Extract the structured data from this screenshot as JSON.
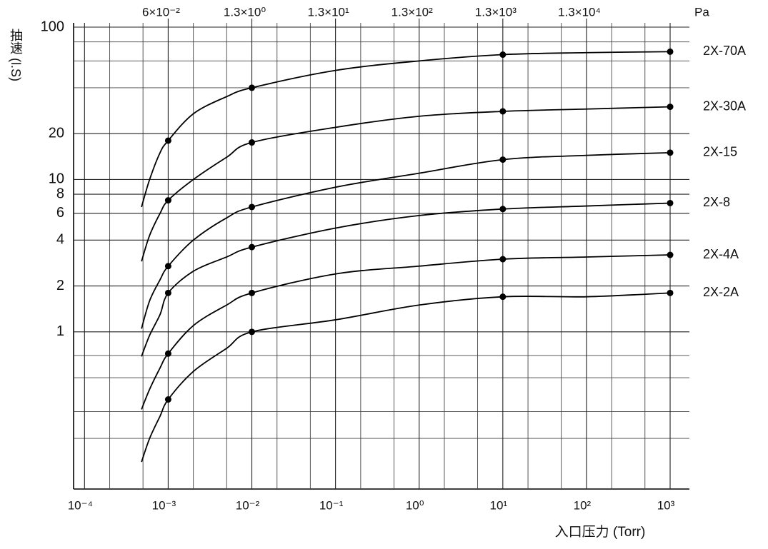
{
  "chart_data": {
    "type": "line",
    "x_label": "入口压力 (Torr)",
    "y_label": "抽速 (l.S)",
    "x2_label": "Pa",
    "xscale": "log",
    "yscale": "log",
    "grid": true,
    "xlim": [
      7.4e-05,
      1700
    ],
    "ylim": [
      0.093,
      100
    ],
    "xticks": [
      {
        "value": 0.0001,
        "label": "10⁻⁴"
      },
      {
        "value": 0.001,
        "label": "10⁻³"
      },
      {
        "value": 0.01,
        "label": "10⁻²"
      },
      {
        "value": 0.1,
        "label": "10⁻¹"
      },
      {
        "value": 1,
        "label": "10⁰"
      },
      {
        "value": 10,
        "label": "10¹"
      },
      {
        "value": 100,
        "label": "10²"
      },
      {
        "value": 1000,
        "label": "10³"
      }
    ],
    "x2ticks": [
      {
        "value": 0.001,
        "label": "6×10⁻²"
      },
      {
        "value": 0.01,
        "label": "1.3×10⁰"
      },
      {
        "value": 0.1,
        "label": "1.3×10¹"
      },
      {
        "value": 1,
        "label": "1.3×10²"
      },
      {
        "value": 10,
        "label": "1.3×10³"
      },
      {
        "value": 100,
        "label": "1.3×10⁴"
      }
    ],
    "minor_xticks": [
      0.0002,
      0.0005,
      0.002,
      0.005,
      0.02,
      0.05,
      0.2,
      0.5,
      2,
      5,
      20,
      50,
      200,
      500
    ],
    "yticks": [
      1,
      2,
      4,
      6,
      8,
      10,
      20,
      100
    ],
    "minor_yticks": [
      0.2,
      0.3,
      0.5,
      0.7,
      40,
      60,
      80
    ],
    "marker_x": [
      0.001,
      0.01,
      10,
      1000
    ],
    "x": [
      0.00048,
      0.0006,
      0.0008,
      0.001,
      0.002,
      0.005,
      0.01,
      0.1,
      1,
      10,
      100,
      1000
    ],
    "series": [
      {
        "name": "2X-70A",
        "color": "#000000",
        "values": [
          6.6,
          10,
          15,
          18,
          27,
          35,
          40,
          52,
          60,
          66,
          68,
          69
        ]
      },
      {
        "name": "2X-30A",
        "color": "#000000",
        "values": [
          2.9,
          4.3,
          6.0,
          7.3,
          10,
          14,
          17.5,
          22,
          26,
          28,
          29,
          30
        ]
      },
      {
        "name": "2X-15",
        "color": "#000000",
        "values": [
          1.05,
          1.6,
          2.2,
          2.7,
          4.0,
          5.6,
          6.6,
          8.9,
          11,
          13.5,
          14.4,
          15
        ]
      },
      {
        "name": "2X-8",
        "color": "#000000",
        "values": [
          0.69,
          0.95,
          1.3,
          1.8,
          2.5,
          3.1,
          3.6,
          4.8,
          5.8,
          6.4,
          6.7,
          7.0
        ]
      },
      {
        "name": "2X-4A",
        "color": "#000000",
        "values": [
          0.31,
          0.42,
          0.58,
          0.72,
          1.1,
          1.5,
          1.8,
          2.4,
          2.7,
          3.0,
          3.1,
          3.2
        ]
      },
      {
        "name": "2X-2A",
        "color": "#000000",
        "values": [
          0.14,
          0.2,
          0.28,
          0.36,
          0.55,
          0.78,
          1.0,
          1.2,
          1.5,
          1.7,
          1.7,
          1.8
        ]
      }
    ]
  }
}
